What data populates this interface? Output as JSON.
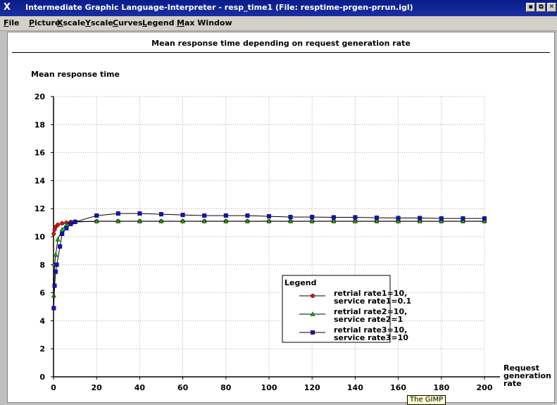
{
  "window": {
    "title": "Intermediate Graphic Language-Interpreter - resp_time1 (File: resptime-prgen-prrun.igl)",
    "x_icon": "X",
    "buttons": [
      "▪",
      "⧉",
      "✕"
    ]
  },
  "menu": [
    "File",
    "Picture",
    "Xscale",
    "Yscale",
    "Curves",
    "Legend",
    "Max Window"
  ],
  "tooltip": "The GIMP",
  "chart_data": {
    "type": "line",
    "title": "Mean response time depending on request generation rate",
    "ylabel": "Mean response time",
    "xlabel": "Request generation rate",
    "xlabel_lines": [
      "Request",
      "generation",
      "rate"
    ],
    "xlim": [
      0,
      200
    ],
    "ylim": [
      0,
      20
    ],
    "xticks": [
      0,
      20,
      40,
      60,
      80,
      100,
      120,
      140,
      160,
      180,
      200
    ],
    "yticks": [
      0,
      2,
      4,
      6,
      8,
      10,
      12,
      14,
      16,
      18,
      20
    ],
    "grid": true,
    "legend": {
      "title": "Legend",
      "position": "center-right",
      "items": [
        {
          "line1": "retrial rate1=10,",
          "line2": "service rate1=0.1"
        },
        {
          "line1": "retrial rate2=10,",
          "line2": "service rate2=1"
        },
        {
          "line1": "retrial rate3=10,",
          "line2": "service rate3=10"
        }
      ]
    },
    "series": [
      {
        "name": "retrial rate1=10, service rate1=0.1",
        "color": "#dd1111",
        "marker": "circle",
        "points": [
          [
            0.1,
            10.2
          ],
          [
            0.5,
            10.5
          ],
          [
            1,
            10.7
          ],
          [
            2,
            10.85
          ],
          [
            4,
            10.95
          ],
          [
            6,
            11.0
          ],
          [
            8,
            11.05
          ],
          [
            10,
            11.08
          ],
          [
            20,
            11.1
          ],
          [
            30,
            11.1
          ],
          [
            40,
            11.1
          ],
          [
            50,
            11.1
          ],
          [
            60,
            11.1
          ],
          [
            70,
            11.1
          ],
          [
            80,
            11.1
          ],
          [
            90,
            11.1
          ],
          [
            100,
            11.1
          ],
          [
            110,
            11.1
          ],
          [
            120,
            11.1
          ],
          [
            130,
            11.1
          ],
          [
            140,
            11.1
          ],
          [
            150,
            11.1
          ],
          [
            160,
            11.1
          ],
          [
            170,
            11.1
          ],
          [
            180,
            11.1
          ],
          [
            190,
            11.1
          ],
          [
            200,
            11.1
          ]
        ]
      },
      {
        "name": "retrial rate2=10, service rate2=1",
        "color": "#11aa11",
        "marker": "triangle",
        "points": [
          [
            0.1,
            5.8
          ],
          [
            0.5,
            8.0
          ],
          [
            1,
            8.7
          ],
          [
            2,
            9.8
          ],
          [
            4,
            10.5
          ],
          [
            6,
            10.85
          ],
          [
            8,
            11.0
          ],
          [
            10,
            11.05
          ],
          [
            20,
            11.1
          ],
          [
            30,
            11.1
          ],
          [
            40,
            11.1
          ],
          [
            50,
            11.1
          ],
          [
            60,
            11.1
          ],
          [
            70,
            11.1
          ],
          [
            80,
            11.1
          ],
          [
            90,
            11.1
          ],
          [
            100,
            11.1
          ],
          [
            110,
            11.1
          ],
          [
            120,
            11.1
          ],
          [
            130,
            11.1
          ],
          [
            140,
            11.1
          ],
          [
            150,
            11.1
          ],
          [
            160,
            11.1
          ],
          [
            170,
            11.1
          ],
          [
            180,
            11.1
          ],
          [
            190,
            11.1
          ],
          [
            200,
            11.1
          ]
        ]
      },
      {
        "name": "retrial rate3=10, service rate3=10",
        "color": "#1111cc",
        "marker": "square",
        "points": [
          [
            0.1,
            4.9
          ],
          [
            0.5,
            6.5
          ],
          [
            1,
            7.5
          ],
          [
            1.5,
            8.0
          ],
          [
            3,
            9.3
          ],
          [
            4,
            10.2
          ],
          [
            6,
            10.6
          ],
          [
            8,
            10.9
          ],
          [
            10,
            11.05
          ],
          [
            20,
            11.5
          ],
          [
            30,
            11.65
          ],
          [
            40,
            11.65
          ],
          [
            50,
            11.6
          ],
          [
            60,
            11.55
          ],
          [
            70,
            11.5
          ],
          [
            80,
            11.5
          ],
          [
            90,
            11.5
          ],
          [
            100,
            11.45
          ],
          [
            110,
            11.4
          ],
          [
            120,
            11.4
          ],
          [
            130,
            11.38
          ],
          [
            140,
            11.38
          ],
          [
            150,
            11.35
          ],
          [
            160,
            11.33
          ],
          [
            170,
            11.33
          ],
          [
            180,
            11.3
          ],
          [
            190,
            11.3
          ],
          [
            200,
            11.3
          ]
        ]
      }
    ]
  }
}
